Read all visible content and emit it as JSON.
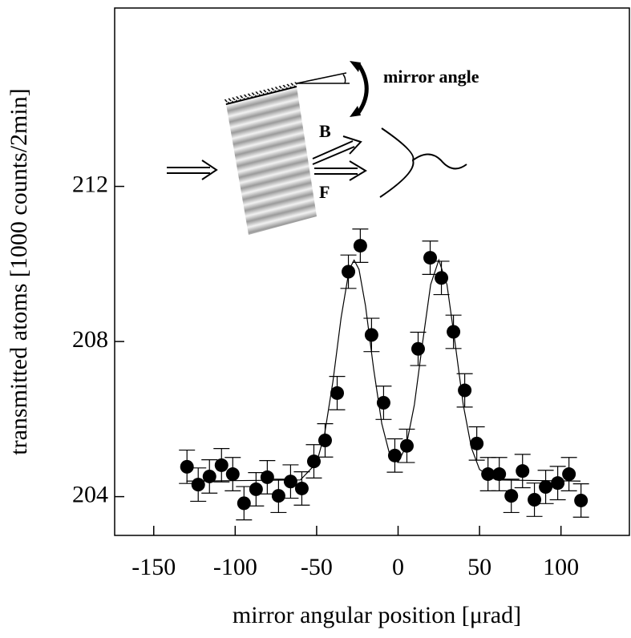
{
  "chart_data": {
    "type": "scatter",
    "xlabel": "mirror angular position [μrad]",
    "ylabel": "transmitted atoms [1000 counts/2min]",
    "annotations": [
      "mirror angle",
      "B",
      "F"
    ],
    "xlim": [
      -174,
      142
    ],
    "ylim": [
      203,
      216.6
    ],
    "xticks": [
      -150,
      -100,
      -50,
      0,
      50,
      100
    ],
    "yticks": [
      204,
      208,
      212
    ],
    "series": [
      {
        "type": "scatter",
        "color": "#000000",
        "x": [
          -129.6,
          -122.7,
          -115.8,
          -108.4,
          -101.5,
          -94.6,
          -87.2,
          -80.3,
          -73.4,
          -66.0,
          -59.1,
          -51.7,
          -44.8,
          -37.4,
          -30.5,
          -23.2,
          -16.3,
          -8.9,
          -2.0,
          5.4,
          12.3,
          19.7,
          26.6,
          34.0,
          40.9,
          48.3,
          55.2,
          62.1,
          69.5,
          76.4,
          83.7,
          90.6,
          98.0,
          104.9,
          112.3
        ],
        "values": [
          204.77,
          204.31,
          204.52,
          204.81,
          204.58,
          203.83,
          204.19,
          204.5,
          204.02,
          204.39,
          204.21,
          204.91,
          205.45,
          206.67,
          209.8,
          210.47,
          208.17,
          206.42,
          205.06,
          205.31,
          207.81,
          210.16,
          209.64,
          208.25,
          206.74,
          205.37,
          204.58,
          204.58,
          204.02,
          204.66,
          203.92,
          204.25,
          204.35,
          204.58,
          203.9
        ],
        "errors": [
          0.43,
          0.43,
          0.43,
          0.43,
          0.43,
          0.43,
          0.43,
          0.43,
          0.43,
          0.43,
          0.43,
          0.43,
          0.43,
          0.43,
          0.43,
          0.43,
          0.43,
          0.43,
          0.43,
          0.43,
          0.43,
          0.43,
          0.43,
          0.43,
          0.43,
          0.43,
          0.43,
          0.43,
          0.43,
          0.43,
          0.43,
          0.43,
          0.43,
          0.43,
          0.43
        ]
      },
      {
        "type": "line",
        "color": "#000000",
        "x": [
          -130,
          -60,
          -50,
          -45,
          -40,
          -35,
          -30,
          -27,
          -24,
          -20,
          -15,
          -10,
          -5,
          0,
          5,
          10,
          15,
          20,
          25,
          30,
          35,
          40,
          45,
          50,
          60,
          112
        ],
        "values": [
          204.4,
          204.43,
          204.87,
          205.64,
          206.97,
          208.61,
          209.86,
          210.1,
          209.86,
          208.92,
          207.29,
          205.88,
          205.06,
          204.88,
          205.31,
          206.37,
          207.96,
          209.47,
          210.1,
          209.47,
          207.96,
          206.37,
          205.26,
          204.7,
          204.43,
          204.4
        ]
      }
    ]
  }
}
